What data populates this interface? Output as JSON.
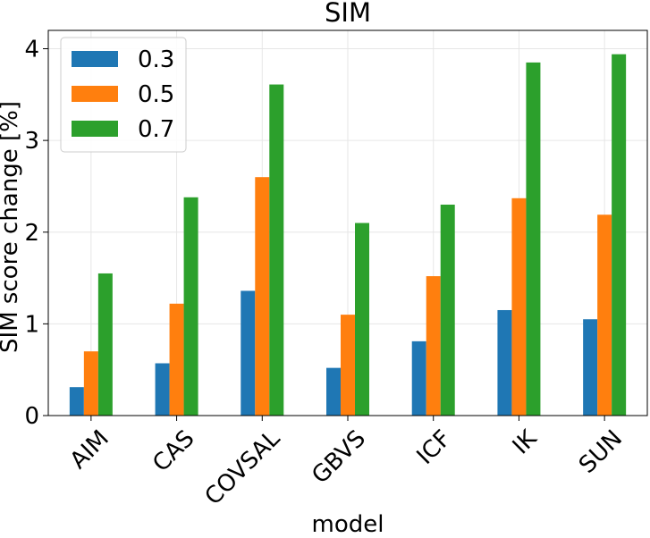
{
  "chart_data": {
    "type": "bar",
    "title": "SIM",
    "xlabel": "model",
    "ylabel": "SIM score change [%]",
    "categories": [
      "AIM",
      "CAS",
      "COVSAL",
      "GBVS",
      "ICF",
      "IK",
      "SUN"
    ],
    "series": [
      {
        "name": "0.3",
        "color": "#1f77b4",
        "values": [
          0.31,
          0.57,
          1.36,
          0.52,
          0.81,
          1.15,
          1.05
        ]
      },
      {
        "name": "0.5",
        "color": "#ff7f0e",
        "values": [
          0.7,
          1.22,
          2.6,
          1.1,
          1.52,
          2.37,
          2.19
        ]
      },
      {
        "name": "0.7",
        "color": "#2ca02c",
        "values": [
          1.55,
          2.38,
          3.61,
          2.1,
          2.3,
          3.85,
          3.94
        ]
      }
    ],
    "ylim": [
      0,
      4.2
    ],
    "yticks": [
      "0",
      "1",
      "2",
      "3",
      "4"
    ],
    "grid": true,
    "legend_position": "top-left"
  }
}
